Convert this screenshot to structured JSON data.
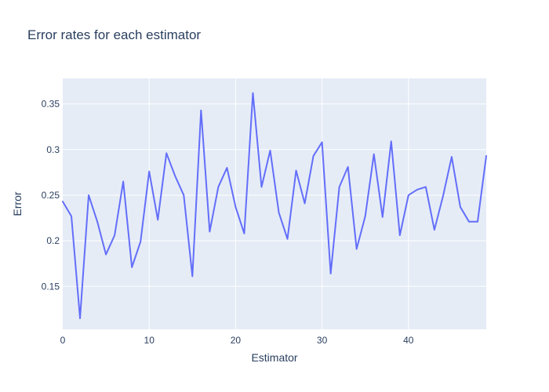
{
  "chart_data": {
    "type": "line",
    "title": "Error rates for each estimator",
    "xlabel": "Estimator",
    "ylabel": "Error",
    "xlim": [
      0,
      49
    ],
    "ylim": [
      0.103,
      0.378
    ],
    "x_ticks": [
      0,
      10,
      20,
      30,
      40
    ],
    "y_ticks": [
      0.15,
      0.2,
      0.25,
      0.3,
      0.35
    ],
    "y_tick_labels": [
      "0.15",
      "0.2",
      "0.25",
      "0.3",
      "0.35"
    ],
    "grid": true,
    "colors": {
      "plot_bg": "#e5ecf6",
      "line": "#636efa",
      "grid": "#ffffff",
      "text": "#2a3f5f"
    },
    "series": [
      {
        "x": [
          0,
          1,
          2,
          3,
          4,
          5,
          6,
          7,
          8,
          9,
          10,
          11,
          12,
          13,
          14,
          15,
          16,
          17,
          18,
          19,
          20,
          21,
          22,
          23,
          24,
          25,
          26,
          27,
          28,
          29,
          30,
          31,
          32,
          33,
          34,
          35,
          36,
          37,
          38,
          39,
          40,
          41,
          42,
          43,
          44,
          45,
          46,
          47,
          48,
          49
        ],
        "values": [
          0.243,
          0.227,
          0.115,
          0.25,
          0.221,
          0.185,
          0.206,
          0.265,
          0.171,
          0.199,
          0.276,
          0.223,
          0.296,
          0.271,
          0.25,
          0.161,
          0.343,
          0.21,
          0.259,
          0.28,
          0.237,
          0.208,
          0.362,
          0.259,
          0.299,
          0.231,
          0.202,
          0.277,
          0.241,
          0.293,
          0.308,
          0.164,
          0.259,
          0.281,
          0.191,
          0.227,
          0.295,
          0.226,
          0.309,
          0.206,
          0.25,
          0.256,
          0.259,
          0.212,
          0.249,
          0.292,
          0.237,
          0.221,
          0.221,
          0.293
        ]
      }
    ]
  }
}
